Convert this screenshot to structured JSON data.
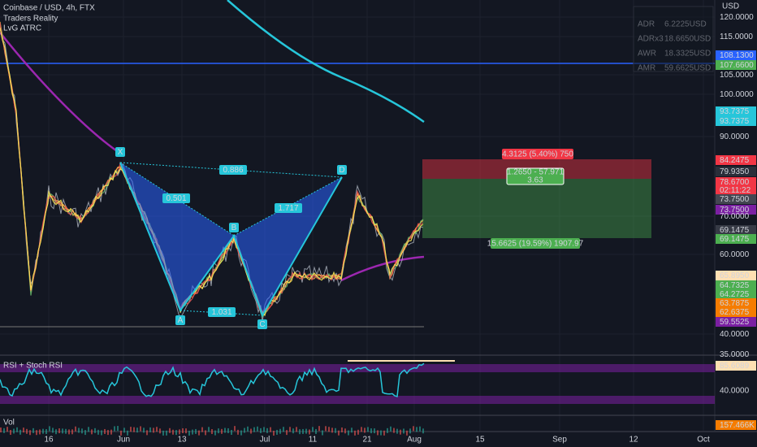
{
  "header": {
    "symbol": "Coinbase / USD, 4h, FTX",
    "indicators": [
      "Traders Reality",
      "LvG ATRC"
    ]
  },
  "atr_table": [
    {
      "label": "ADR",
      "value": "6.2225USD"
    },
    {
      "label": "ADRx3",
      "value": "18.6650USD"
    },
    {
      "label": "AWR",
      "value": "18.3325USD"
    },
    {
      "label": "AMR",
      "value": "59.6625USD"
    }
  ],
  "price_axis": {
    "unit": "USD",
    "labels": [
      "120.0000",
      "115.0000",
      "108.1300",
      "107.6600",
      "105.0000",
      "100.0000",
      "93.7375",
      "93.7375",
      "90.0000",
      "84.2475",
      "79.9350",
      "78.6700",
      "02:11:22",
      "73.7500",
      "73.7500",
      "70.0000",
      "69.1475",
      "69.1475",
      "60.0000",
      "65.8950",
      "64.7325",
      "64.2725",
      "63.7875",
      "62.6375",
      "59.5525",
      "40.0000",
      "35.0000"
    ]
  },
  "pattern": {
    "points": [
      "X",
      "A",
      "B",
      "C",
      "D"
    ],
    "ratios": [
      "0.886",
      "0.501",
      "1.717",
      "1.031"
    ]
  },
  "position": {
    "target": "4.3125 (5.40%) 750",
    "info": "1.2650 - 57.971",
    "ratio": "3.63",
    "stop": "15.6625 (19.59%) 1907.97"
  },
  "rsi_pane": {
    "title": "RSI + Stoch RSI",
    "labels": [
      "85.6089",
      "40.0000"
    ]
  },
  "volume_pane": {
    "title": "Vol",
    "label": "157.466K"
  },
  "time_axis": [
    "16",
    "Jun",
    "13",
    "Jul",
    "11",
    "21",
    "Aug",
    "15",
    "Sep",
    "12",
    "Oct"
  ]
}
